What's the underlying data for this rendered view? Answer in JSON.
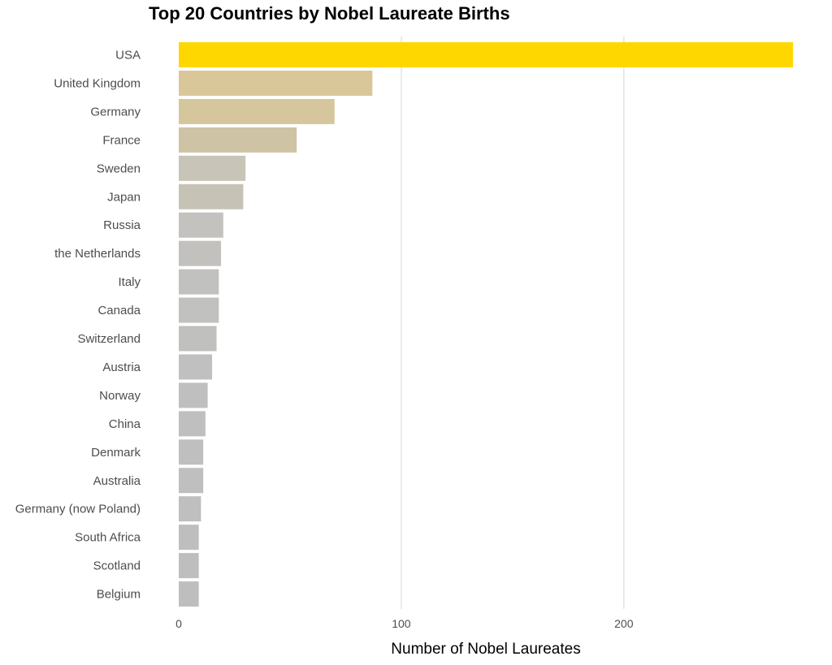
{
  "chart_data": {
    "type": "bar",
    "orientation": "horizontal",
    "title": "Top 20 Countries by Nobel Laureate Births",
    "xlabel": "Number of Nobel Laureates",
    "ylabel": "",
    "categories": [
      "USA",
      "United Kingdom",
      "Germany",
      "France",
      "Sweden",
      "Japan",
      "Russia",
      "the Netherlands",
      "Italy",
      "Canada",
      "Switzerland",
      "Austria",
      "Norway",
      "China",
      "Denmark",
      "Australia",
      "Germany (now Poland)",
      "South Africa",
      "Scotland",
      "Belgium"
    ],
    "values": [
      276,
      87,
      70,
      53,
      30,
      29,
      20,
      19,
      18,
      18,
      17,
      15,
      13,
      12,
      11,
      11,
      10,
      9,
      9,
      9
    ],
    "bar_colors": [
      "#FFD700",
      "#D9C79A",
      "#D5C69E",
      "#CFC3A6",
      "#C8C4B8",
      "#C6C3B6",
      "#C3C2BE",
      "#C2C1BE",
      "#C1C1BF",
      "#C1C1BF",
      "#C0C0BF",
      "#C0C0C0",
      "#BFBFBF",
      "#BFBFBF",
      "#BFBFBF",
      "#BFBFBF",
      "#BFBFBF",
      "#BEBEBE",
      "#BEBEBE",
      "#BEBEBE"
    ],
    "xlim": [
      0,
      276
    ],
    "x_ticks": [
      0,
      100,
      200
    ],
    "grid": "vertical-major",
    "legend": "none"
  }
}
